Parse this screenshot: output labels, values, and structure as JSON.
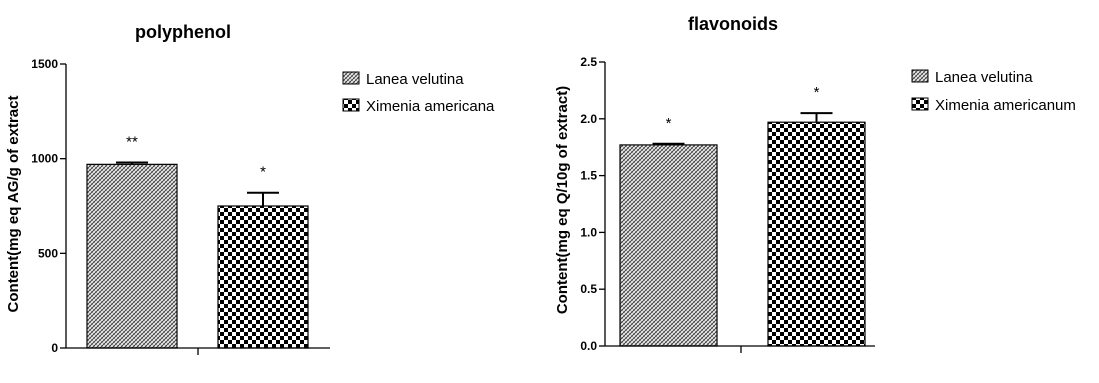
{
  "chart_data": [
    {
      "type": "bar",
      "title": "polyphenol",
      "xlabel": "",
      "ylabel": "Content(mg eq AG/g of extract",
      "ylim": [
        0,
        1500
      ],
      "yticks": [
        0,
        500,
        1000,
        1500
      ],
      "categories": [
        "Lanea velutina",
        "Ximenia americana"
      ],
      "values": [
        970,
        750
      ],
      "errors": [
        10,
        70
      ],
      "significance": [
        "**",
        "*"
      ],
      "legend": [
        "Lanea velutina",
        "Ximenia americana"
      ],
      "legend_position": "right",
      "grid": false
    },
    {
      "type": "bar",
      "title": "flavonoids",
      "xlabel": "",
      "ylabel": "Content(mg eq Q/10g of extract)",
      "ylim": [
        0,
        2.5
      ],
      "yticks": [
        0.0,
        0.5,
        1.0,
        1.5,
        2.0,
        2.5
      ],
      "ytick_labels": [
        "0.0",
        "0.5",
        "1.0",
        "1.5",
        "2.0",
        "2.5"
      ],
      "categories": [
        "Lanea velutina",
        "Ximenia americanum"
      ],
      "values": [
        1.77,
        1.97
      ],
      "errors": [
        0.01,
        0.08
      ],
      "significance": [
        "*",
        "*"
      ],
      "legend": [
        "Lanea velutina",
        "Ximenia americanum"
      ],
      "legend_position": "right",
      "grid": false
    }
  ]
}
